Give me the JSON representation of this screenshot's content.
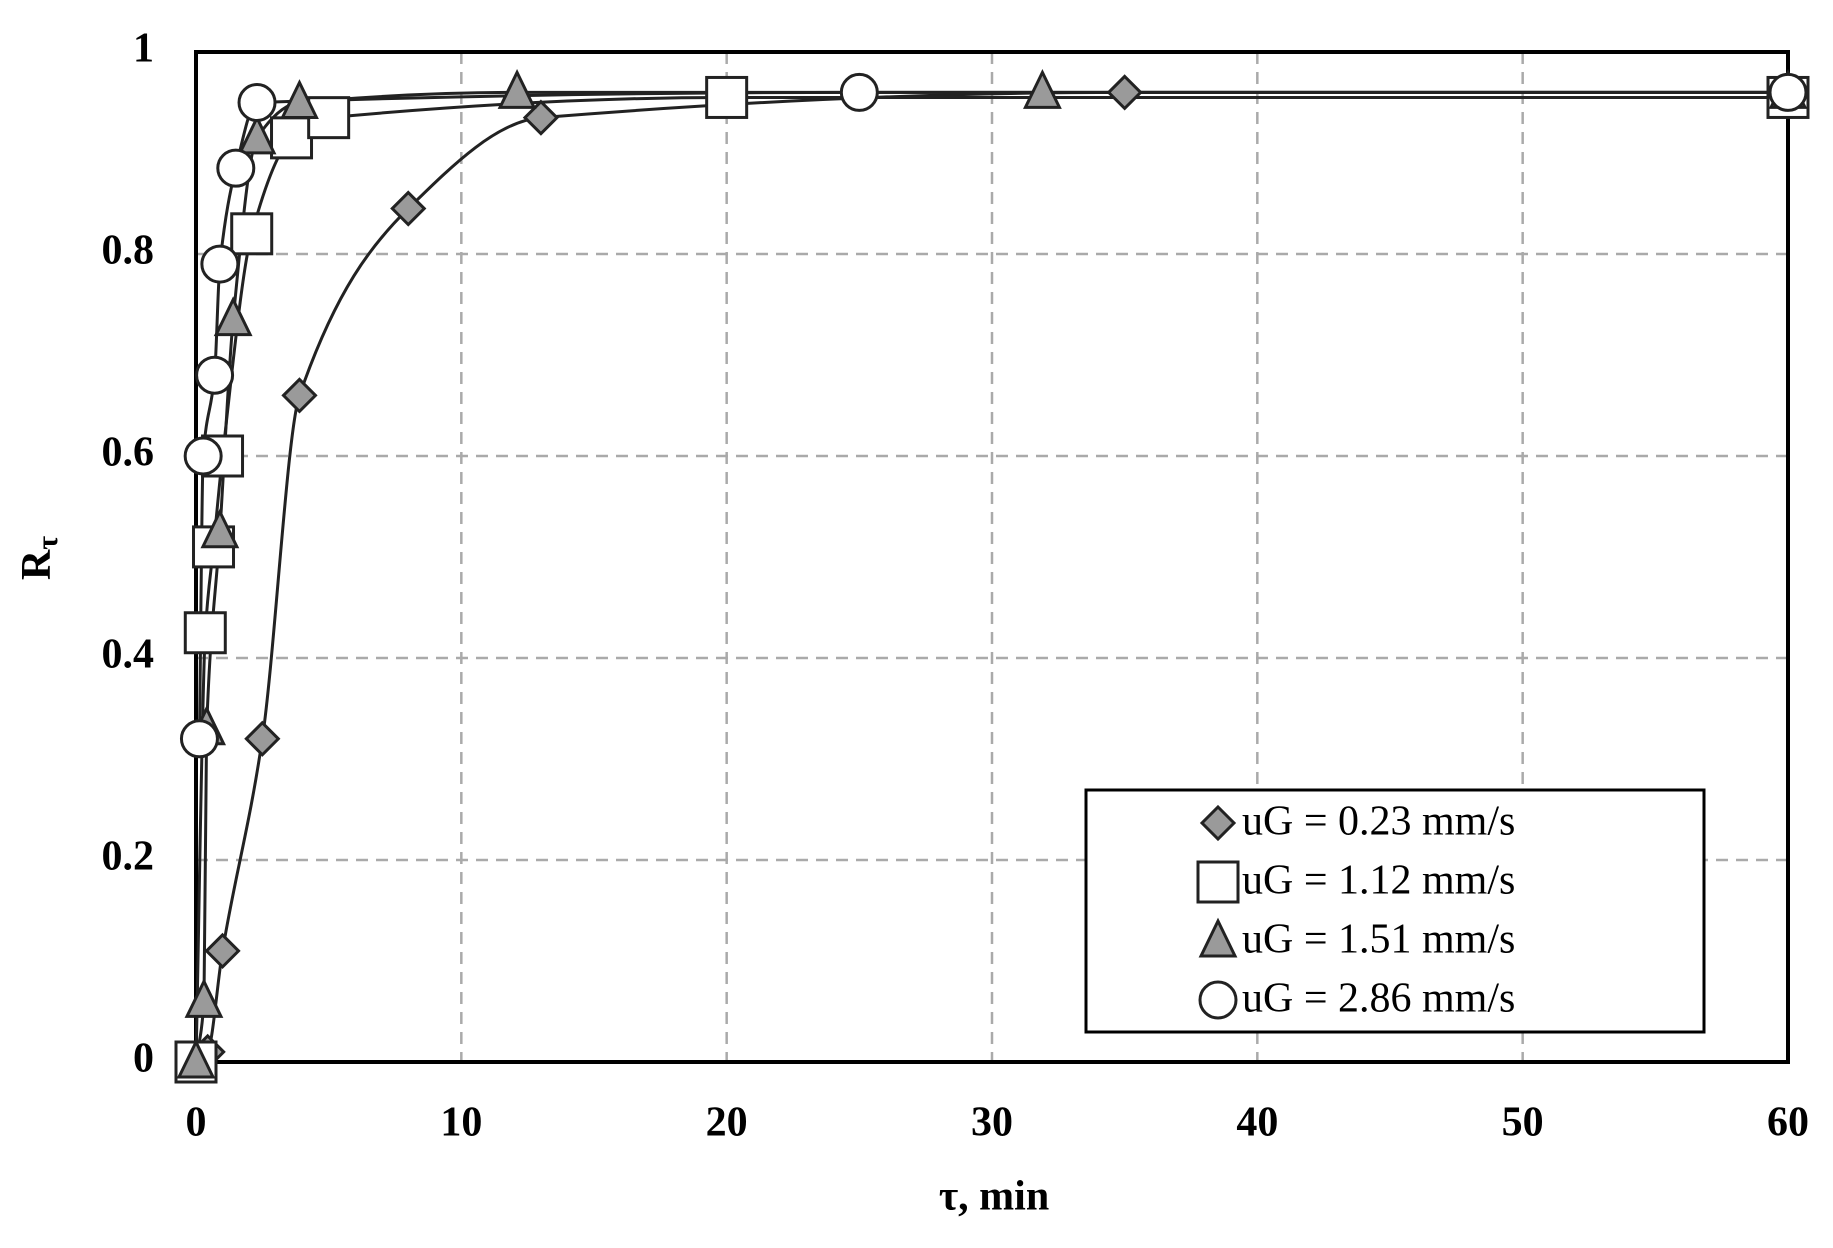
{
  "chart_data": {
    "type": "scatter",
    "x_label": "τ, min",
    "y_label": "R",
    "y_label_subscript": "τ",
    "xlim": [
      0,
      60
    ],
    "xticks": [
      0,
      10,
      20,
      30,
      40,
      50,
      60
    ],
    "ylim": [
      0,
      1
    ],
    "yticks": [
      0,
      0.2,
      0.4,
      0.6,
      0.8,
      1
    ],
    "grid": true,
    "legend_position": "lower-right",
    "series": [
      {
        "name": "uG = 0.23 mm/s",
        "marker": "diamond",
        "color": "#9a9a9a",
        "x": [
          0,
          0.44,
          1.0,
          2.5,
          3.9,
          8.0,
          13,
          35,
          60
        ],
        "values": [
          0,
          0.01,
          0.11,
          0.32,
          0.66,
          0.845,
          0.935,
          0.96,
          0.96
        ]
      },
      {
        "name": "uG = 1.12 mm/s",
        "marker": "square",
        "color": "#ffffff",
        "x": [
          0,
          0.35,
          0.66,
          1.0,
          2.1,
          3.6,
          5,
          20,
          60
        ],
        "values": [
          0,
          0.425,
          0.51,
          0.6,
          0.82,
          0.915,
          0.935,
          0.955,
          0.955
        ]
      },
      {
        "name": "uG = 1.51 mm/s",
        "marker": "triangle",
        "color": "#9a9a9a",
        "x": [
          0,
          0.3,
          0.4,
          0.9,
          1.4,
          2.3,
          3.9,
          12.1,
          31.9,
          60
        ],
        "values": [
          0,
          0.06,
          0.33,
          0.525,
          0.735,
          0.915,
          0.95,
          0.96,
          0.96,
          0.96
        ]
      },
      {
        "name": "uG = 2.86 mm/s",
        "marker": "circle",
        "color": "#ffffff",
        "x": [
          0.13,
          0.27,
          0.7,
          0.9,
          1.5,
          2.3,
          25,
          60
        ],
        "values": [
          0.32,
          0.6,
          0.68,
          0.79,
          0.885,
          0.95,
          0.96,
          0.96
        ]
      }
    ]
  }
}
